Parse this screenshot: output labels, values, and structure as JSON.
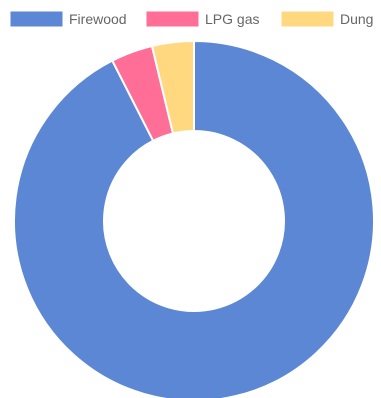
{
  "chart_data": {
    "type": "pie",
    "donut": true,
    "categories": [
      "Firewood",
      "LPG gas",
      "Dung"
    ],
    "values": [
      92.5,
      3.75,
      3.75
    ],
    "colors": [
      "#5b87d4",
      "#ff6e96",
      "#ffd880"
    ],
    "legend_position": "top"
  }
}
